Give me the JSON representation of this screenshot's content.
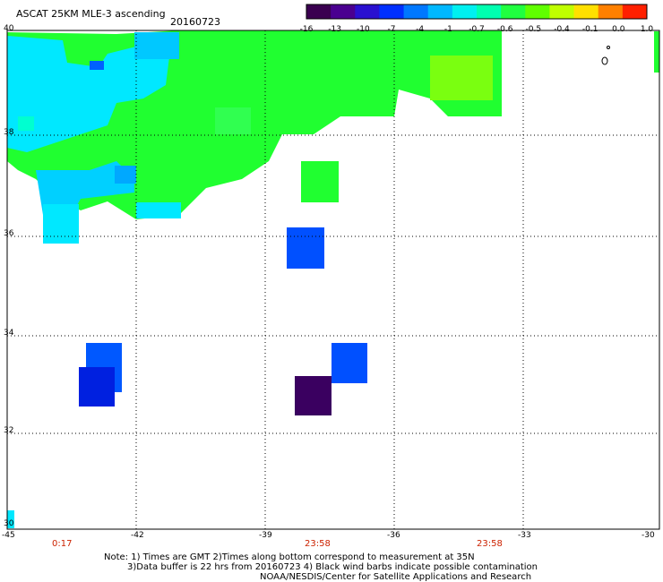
{
  "title": "ASCAT 25KM MLE-3 ascending",
  "date": "20160723",
  "colorbar": {
    "labels": [
      "-16",
      "-13",
      "-10",
      "-7",
      "-4",
      "-1",
      "-0.7",
      "-0.6",
      "-0.5",
      "-0.4",
      "-0.1",
      "0.0",
      "1.0"
    ],
    "colors": [
      "#3a0050",
      "#4a0090",
      "#2a10d0",
      "#0030ff",
      "#0078ff",
      "#00b8ff",
      "#00f0f0",
      "#00ffb0",
      "#20ff40",
      "#60ff00",
      "#c0ff00",
      "#ffe000",
      "#ff8000",
      "#ff2000"
    ]
  },
  "axes": {
    "lon_labels": [
      "-45",
      "-42",
      "-39",
      "-36",
      "-33",
      "-30"
    ],
    "lat_labels": [
      "40",
      "38",
      "36",
      "34",
      "32",
      "30"
    ]
  },
  "times": [
    "0:17",
    "23:58",
    "23:58"
  ],
  "notes": [
    "Note: 1) Times are GMT 2)Times along bottom correspond to measurement at 35N",
    "3)Data buffer is 22 hrs from 20160723 4) Black wind barbs indicate possible contamination",
    "NOAA/NESDIS/Center for Satellite Applications and Research"
  ],
  "colors": {
    "green": "#20ff30",
    "cyan": "#00e8ff",
    "blue": "#0050ff",
    "deep_blue": "#0020e0",
    "purple": "#3a0060"
  }
}
